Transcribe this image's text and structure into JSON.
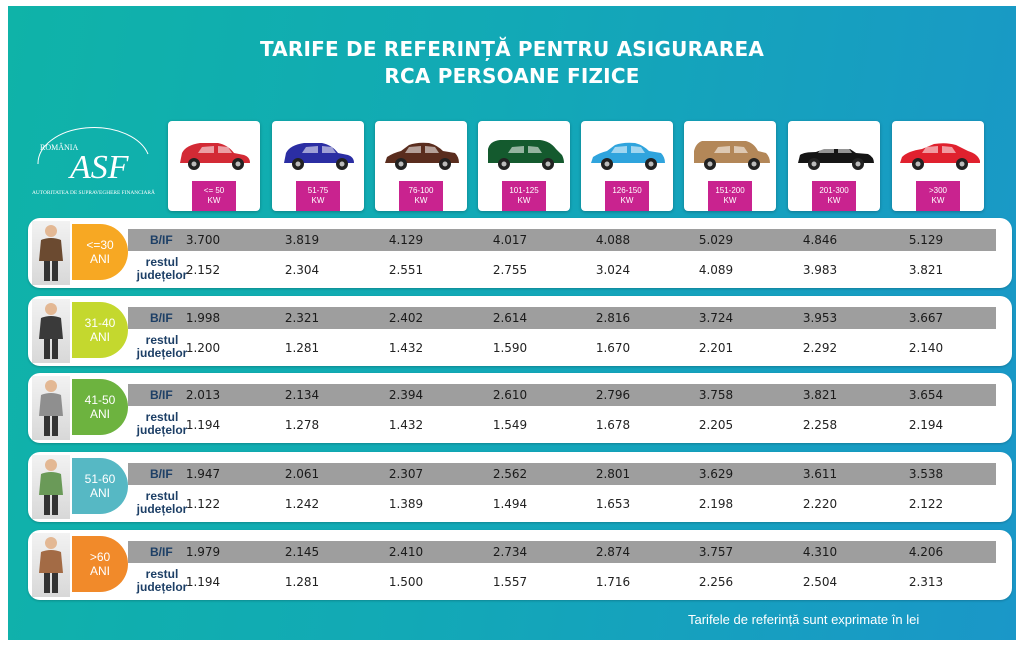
{
  "title": {
    "line1": "TARIFE DE REFERINȚĂ PENTRU ASIGURAREA",
    "line2": "RCA PERSOANE FIZICE"
  },
  "logo": {
    "country": "ROMÂNIA",
    "monogram": "ASF",
    "arc_text": "AUTORITATEA DE SUPRAVEGHERE FINANCIARĂ"
  },
  "colors": {
    "background": "#12a9b6",
    "kw_tag": "#c9238f",
    "bif_bar": "#9e9e9e",
    "label_text": "#1d3f66"
  },
  "power_classes": [
    {
      "range": "<= 50",
      "unit": "KW",
      "car_color": "#d32a35",
      "car_icon": "hatchback-icon"
    },
    {
      "range": "51-75",
      "unit": "KW",
      "car_color": "#2b2ea3",
      "car_icon": "hatchback-icon"
    },
    {
      "range": "76-100",
      "unit": "KW",
      "car_color": "#5a2d1e",
      "car_icon": "sedan-icon"
    },
    {
      "range": "101-125",
      "unit": "KW",
      "car_color": "#145a2e",
      "car_icon": "minivan-icon"
    },
    {
      "range": "126-150",
      "unit": "KW",
      "car_color": "#2fa4dd",
      "car_icon": "sedan-icon"
    },
    {
      "range": "151-200",
      "unit": "KW",
      "car_color": "#b38758",
      "car_icon": "suv-icon"
    },
    {
      "range": "201-300",
      "unit": "KW",
      "car_color": "#151515",
      "car_icon": "convertible-icon"
    },
    {
      "range": ">300",
      "unit": "KW",
      "car_color": "#e0212e",
      "car_icon": "sports-car-icon"
    }
  ],
  "row_labels": {
    "bif": "B/IF",
    "rest_line1": "restul",
    "rest_line2": "județelor"
  },
  "age_groups": [
    {
      "age": "<=30",
      "unit": "ANI",
      "color": "#f7a823",
      "bif": [
        "3.700",
        "3.819",
        "4.129",
        "4.017",
        "4.088",
        "5.029",
        "4.846",
        "5.129"
      ],
      "rest": [
        "2.152",
        "2.304",
        "2.551",
        "2.755",
        "3.024",
        "4.089",
        "3.983",
        "3.821"
      ]
    },
    {
      "age": "31-40",
      "unit": "ANI",
      "color": "#c4d82e",
      "bif": [
        "1.998",
        "2.321",
        "2.402",
        "2.614",
        "2.816",
        "3.724",
        "3.953",
        "3.667"
      ],
      "rest": [
        "1.200",
        "1.281",
        "1.432",
        "1.590",
        "1.670",
        "2.201",
        "2.292",
        "2.140"
      ]
    },
    {
      "age": "41-50",
      "unit": "ANI",
      "color": "#6db33f",
      "bif": [
        "2.013",
        "2.134",
        "2.394",
        "2.610",
        "2.796",
        "3.758",
        "3.821",
        "3.654"
      ],
      "rest": [
        "1.194",
        "1.278",
        "1.432",
        "1.549",
        "1.678",
        "2.205",
        "2.258",
        "2.194"
      ]
    },
    {
      "age": "51-60",
      "unit": "ANI",
      "color": "#56b8c4",
      "bif": [
        "1.947",
        "2.061",
        "2.307",
        "2.562",
        "2.801",
        "3.629",
        "3.611",
        "3.538"
      ],
      "rest": [
        "1.122",
        "1.242",
        "1.389",
        "1.494",
        "1.653",
        "2.198",
        "2.220",
        "2.122"
      ]
    },
    {
      "age": ">60",
      "unit": "ANI",
      "color": "#f18a2a",
      "bif": [
        "1.979",
        "2.145",
        "2.410",
        "2.734",
        "2.874",
        "3.757",
        "4.310",
        "4.206"
      ],
      "rest": [
        "1.194",
        "1.281",
        "1.500",
        "1.557",
        "1.716",
        "2.256",
        "2.504",
        "2.313"
      ]
    }
  ],
  "footer_note": "Tarifele de referință sunt exprimate în lei"
}
